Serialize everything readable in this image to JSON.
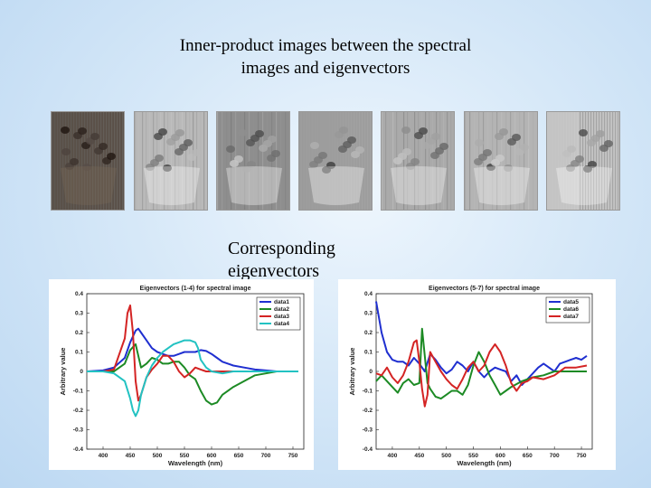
{
  "heading": {
    "line1": "Inner-product images between the spectral",
    "line2": "images and eigenvectors"
  },
  "thumbnails": [
    {
      "name": "eigen-image-1",
      "tone": "#5a5048"
    },
    {
      "name": "eigen-image-2",
      "tone": "#b9b9b9"
    },
    {
      "name": "eigen-image-3",
      "tone": "#8e8e8e"
    },
    {
      "name": "eigen-image-4",
      "tone": "#9d9d9d"
    },
    {
      "name": "eigen-image-5",
      "tone": "#aaaaaa"
    },
    {
      "name": "eigen-image-6",
      "tone": "#b4b4b4"
    },
    {
      "name": "eigen-image-7",
      "tone": "#c4c4c4"
    }
  ],
  "caption": {
    "line1": "Corresponding",
    "line2": "eigenvectors"
  },
  "chart_data": [
    {
      "type": "line",
      "title": "Eigenvectors (1-4) for spectral image",
      "xlabel": "Wavelength (nm)",
      "ylabel": "Arbitrary value",
      "xlim": [
        370,
        770
      ],
      "ylim": [
        -0.4,
        0.4
      ],
      "xticks": [
        400,
        450,
        500,
        550,
        600,
        650,
        700,
        750
      ],
      "yticks": [
        0.4,
        0.3,
        0.2,
        0.1,
        0,
        -0.1,
        -0.2,
        -0.3,
        -0.4
      ],
      "series": [
        {
          "name": "data1",
          "color": "#1f2fd0",
          "x": [
            370,
            400,
            420,
            440,
            450,
            460,
            465,
            470,
            480,
            490,
            500,
            510,
            520,
            530,
            540,
            550,
            560,
            570,
            580,
            590,
            600,
            610,
            620,
            640,
            660,
            680,
            700,
            720,
            740,
            760
          ],
          "y": [
            0,
            0.005,
            0.02,
            0.07,
            0.15,
            0.21,
            0.22,
            0.2,
            0.16,
            0.12,
            0.1,
            0.09,
            0.08,
            0.08,
            0.09,
            0.1,
            0.1,
            0.1,
            0.11,
            0.105,
            0.09,
            0.07,
            0.05,
            0.03,
            0.02,
            0.01,
            0.005,
            0,
            0,
            0
          ]
        },
        {
          "name": "data2",
          "color": "#1c8a24",
          "x": [
            370,
            400,
            420,
            440,
            450,
            460,
            465,
            470,
            480,
            490,
            500,
            510,
            520,
            530,
            540,
            550,
            560,
            570,
            580,
            590,
            600,
            610,
            620,
            640,
            660,
            680,
            700,
            720,
            740,
            760
          ],
          "y": [
            0,
            0,
            0,
            0.04,
            0.11,
            0.14,
            0.08,
            0.02,
            0.04,
            0.07,
            0.06,
            0.04,
            0.04,
            0.05,
            0.05,
            0.02,
            -0.02,
            -0.04,
            -0.1,
            -0.15,
            -0.17,
            -0.16,
            -0.12,
            -0.08,
            -0.05,
            -0.02,
            -0.01,
            0,
            0,
            0
          ]
        },
        {
          "name": "data3",
          "color": "#d42424",
          "x": [
            370,
            400,
            420,
            440,
            445,
            450,
            455,
            460,
            465,
            470,
            480,
            490,
            500,
            510,
            520,
            530,
            540,
            550,
            560,
            570,
            580,
            590,
            600,
            620,
            640,
            660,
            680,
            700,
            720,
            740,
            760
          ],
          "y": [
            0,
            0,
            0.01,
            0.17,
            0.3,
            0.34,
            0.2,
            -0.05,
            -0.15,
            -0.12,
            -0.03,
            0.01,
            0.04,
            0.08,
            0.08,
            0.05,
            0.0,
            -0.03,
            -0.01,
            0.02,
            0.01,
            0,
            0,
            0,
            0,
            0,
            0,
            0,
            0,
            0,
            0
          ]
        },
        {
          "name": "data4",
          "color": "#22c2c2",
          "x": [
            370,
            400,
            420,
            440,
            450,
            455,
            460,
            465,
            470,
            480,
            490,
            500,
            510,
            520,
            530,
            540,
            550,
            560,
            570,
            575,
            580,
            590,
            600,
            620,
            640,
            660,
            680,
            700,
            720,
            740,
            760
          ],
          "y": [
            0,
            0,
            -0.01,
            -0.05,
            -0.14,
            -0.2,
            -0.23,
            -0.2,
            -0.12,
            -0.03,
            0.03,
            0.07,
            0.1,
            0.12,
            0.14,
            0.15,
            0.16,
            0.16,
            0.15,
            0.12,
            0.06,
            0.02,
            0,
            -0.01,
            0,
            0,
            0,
            0,
            0,
            0,
            0
          ]
        }
      ]
    },
    {
      "type": "line",
      "title": "Eigenvectors (5-7) for spectral image",
      "xlabel": "Wavelength (nm)",
      "ylabel": "Arbitrary value",
      "xlim": [
        370,
        770
      ],
      "ylim": [
        -0.4,
        0.4
      ],
      "xticks": [
        400,
        450,
        500,
        550,
        600,
        650,
        700,
        750
      ],
      "yticks": [
        0.4,
        0.3,
        0.2,
        0.1,
        0,
        -0.1,
        -0.2,
        -0.3,
        -0.4
      ],
      "series": [
        {
          "name": "data5",
          "color": "#1f2fd0",
          "x": [
            370,
            380,
            390,
            400,
            410,
            420,
            430,
            440,
            450,
            460,
            470,
            480,
            490,
            500,
            510,
            520,
            530,
            540,
            550,
            560,
            570,
            580,
            590,
            600,
            610,
            620,
            630,
            640,
            650,
            660,
            670,
            680,
            690,
            700,
            710,
            720,
            730,
            740,
            750,
            760
          ],
          "y": [
            0.36,
            0.2,
            0.1,
            0.06,
            0.05,
            0.05,
            0.03,
            0.07,
            0.04,
            0.0,
            0.09,
            0.06,
            0.02,
            -0.01,
            0.01,
            0.05,
            0.03,
            0.0,
            0.05,
            0.0,
            -0.03,
            0.0,
            0.02,
            0.01,
            0.0,
            -0.05,
            -0.02,
            -0.07,
            -0.04,
            -0.01,
            0.02,
            0.04,
            0.02,
            0.0,
            0.04,
            0.05,
            0.06,
            0.07,
            0.06,
            0.08
          ]
        },
        {
          "name": "data6",
          "color": "#1c8a24",
          "x": [
            370,
            380,
            390,
            400,
            410,
            420,
            430,
            440,
            450,
            455,
            460,
            465,
            470,
            480,
            490,
            500,
            510,
            520,
            530,
            540,
            550,
            560,
            570,
            580,
            590,
            600,
            610,
            620,
            640,
            660,
            680,
            700,
            720,
            740,
            760
          ],
          "y": [
            -0.05,
            -0.02,
            -0.05,
            -0.08,
            -0.11,
            -0.06,
            -0.04,
            -0.07,
            -0.06,
            0.22,
            0.08,
            -0.06,
            -0.09,
            -0.13,
            -0.14,
            -0.12,
            -0.1,
            -0.1,
            -0.12,
            -0.07,
            0.03,
            0.1,
            0.05,
            -0.02,
            -0.07,
            -0.12,
            -0.1,
            -0.08,
            -0.05,
            -0.03,
            -0.02,
            0,
            0,
            0,
            0
          ]
        },
        {
          "name": "data7",
          "color": "#d42424",
          "x": [
            370,
            380,
            390,
            400,
            410,
            420,
            430,
            440,
            445,
            450,
            455,
            460,
            465,
            470,
            480,
            490,
            500,
            510,
            520,
            530,
            540,
            550,
            560,
            570,
            580,
            590,
            600,
            610,
            620,
            630,
            640,
            650,
            660,
            680,
            700,
            720,
            740,
            760
          ],
          "y": [
            -0.01,
            -0.02,
            0.02,
            -0.03,
            -0.06,
            -0.02,
            0.05,
            0.15,
            0.16,
            0.05,
            -0.09,
            -0.18,
            -0.12,
            0.1,
            0.05,
            0.0,
            -0.04,
            -0.07,
            -0.09,
            -0.04,
            0.02,
            0.05,
            0.0,
            0.03,
            0.1,
            0.14,
            0.1,
            0.03,
            -0.06,
            -0.1,
            -0.06,
            -0.05,
            -0.03,
            -0.04,
            -0.02,
            0.02,
            0.02,
            0.03
          ]
        }
      ]
    }
  ]
}
